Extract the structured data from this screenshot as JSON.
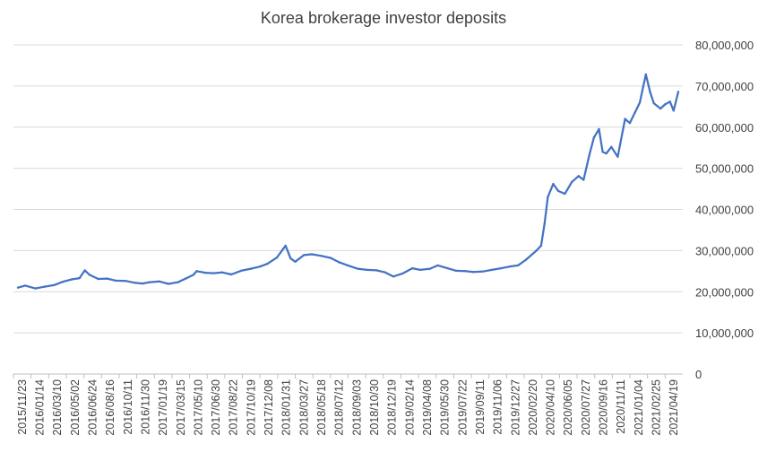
{
  "chart_data": {
    "type": "line",
    "title": "Korea brokerage investor deposits",
    "xlabel": "",
    "ylabel": "",
    "ylim": [
      0,
      80000000
    ],
    "yticks": [
      0,
      10000000,
      20000000,
      30000000,
      40000000,
      50000000,
      60000000,
      70000000,
      80000000
    ],
    "ytick_labels": [
      "0",
      "10,000,000",
      "20,000,000",
      "30,000,000",
      "40,000,000",
      "50,000,000",
      "60,000,000",
      "70,000,000",
      "80,000,000"
    ],
    "grid": true,
    "legend": "none",
    "color": "#4472c4",
    "x_tick_labels": [
      "2015/11/23",
      "2016/01/14",
      "2016/03/10",
      "2016/05/02",
      "2016/06/24",
      "2016/08/16",
      "2016/10/11",
      "2016/11/30",
      "2017/01/19",
      "2017/03/15",
      "2017/05/10",
      "2017/06/30",
      "2017/08/22",
      "2017/10/19",
      "2017/12/08",
      "2018/01/31",
      "2018/03/27",
      "2018/05/18",
      "2018/07/12",
      "2018/09/03",
      "2018/10/30",
      "2018/12/19",
      "2019/02/14",
      "2019/04/08",
      "2019/05/30",
      "2019/07/22",
      "2019/09/11",
      "2019/11/06",
      "2019/12/27",
      "2020/02/20",
      "2020/04/10",
      "2020/06/05",
      "2020/07/27",
      "2020/09/16",
      "2020/11/11",
      "2021/01/04",
      "2021/02/25",
      "2021/04/19"
    ],
    "x": [
      "2015-11-23",
      "2015-12-15",
      "2016-01-14",
      "2016-02-10",
      "2016-03-10",
      "2016-04-05",
      "2016-05-02",
      "2016-05-25",
      "2016-06-10",
      "2016-06-24",
      "2016-07-20",
      "2016-08-16",
      "2016-09-10",
      "2016-10-11",
      "2016-11-05",
      "2016-11-30",
      "2016-12-20",
      "2017-01-19",
      "2017-02-15",
      "2017-03-15",
      "2017-04-10",
      "2017-05-01",
      "2017-05-10",
      "2017-06-05",
      "2017-06-30",
      "2017-07-25",
      "2017-08-22",
      "2017-09-20",
      "2017-10-19",
      "2017-11-15",
      "2017-12-08",
      "2018-01-05",
      "2018-01-25",
      "2018-01-31",
      "2018-02-15",
      "2018-03-01",
      "2018-03-27",
      "2018-04-20",
      "2018-05-18",
      "2018-06-15",
      "2018-07-12",
      "2018-08-05",
      "2018-09-03",
      "2018-10-01",
      "2018-10-30",
      "2018-11-25",
      "2018-12-19",
      "2019-01-15",
      "2019-02-14",
      "2019-03-10",
      "2019-04-08",
      "2019-05-01",
      "2019-05-30",
      "2019-06-25",
      "2019-07-22",
      "2019-08-15",
      "2019-09-11",
      "2019-10-10",
      "2019-11-06",
      "2019-12-01",
      "2019-12-27",
      "2020-01-20",
      "2020-02-20",
      "2020-03-05",
      "2020-03-15",
      "2020-03-25",
      "2020-04-10",
      "2020-04-25",
      "2020-05-15",
      "2020-06-05",
      "2020-06-25",
      "2020-07-10",
      "2020-07-27",
      "2020-08-10",
      "2020-08-25",
      "2020-09-05",
      "2020-09-16",
      "2020-10-01",
      "2020-10-20",
      "2020-11-11",
      "2020-11-25",
      "2020-12-10",
      "2020-12-25",
      "2021-01-04",
      "2021-01-12",
      "2021-01-25",
      "2021-02-05",
      "2021-02-25",
      "2021-03-10",
      "2021-03-25",
      "2021-04-05",
      "2021-04-19"
    ],
    "values": [
      21000000,
      21500000,
      20800000,
      21200000,
      21600000,
      22400000,
      23000000,
      23300000,
      25200000,
      24100000,
      23100000,
      23200000,
      22700000,
      22600000,
      22200000,
      22000000,
      22300000,
      22500000,
      21900000,
      22300000,
      23300000,
      24100000,
      25000000,
      24600000,
      24500000,
      24700000,
      24200000,
      25100000,
      25600000,
      26100000,
      26800000,
      28300000,
      30500000,
      31200000,
      28100000,
      27300000,
      28900000,
      29100000,
      28700000,
      28200000,
      27100000,
      26400000,
      25600000,
      25300000,
      25200000,
      24700000,
      23700000,
      24400000,
      25700000,
      25300000,
      25600000,
      26400000,
      25700000,
      25100000,
      25000000,
      24800000,
      24900000,
      25300000,
      25700000,
      26100000,
      26400000,
      27800000,
      30000000,
      31200000,
      36500000,
      43000000,
      46200000,
      44500000,
      43800000,
      46700000,
      48100000,
      47200000,
      53200000,
      57500000,
      59500000,
      54000000,
      53600000,
      55200000,
      52800000,
      62000000,
      61000000,
      63500000,
      66000000,
      69800000,
      72800000,
      68500000,
      65800000,
      64500000,
      65500000,
      66200000,
      64000000,
      68600000
    ]
  }
}
